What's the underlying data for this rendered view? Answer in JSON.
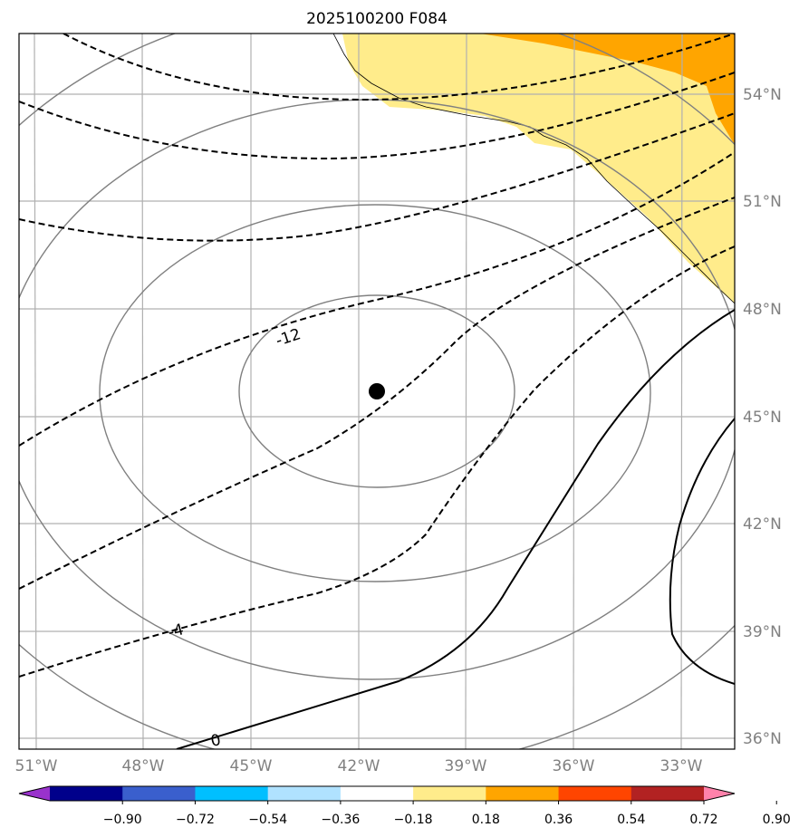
{
  "chart_data": {
    "type": "map",
    "title": "2025100200 F084",
    "lon_ticks": [
      "51°W",
      "48°W",
      "45°W",
      "42°W",
      "39°W",
      "36°W",
      "33°W"
    ],
    "lat_ticks": [
      "54°N",
      "51°N",
      "48°N",
      "45°N",
      "42°N",
      "39°N",
      "36°N"
    ],
    "extent": {
      "lon": [
        -51.3,
        -31.5
      ],
      "lat": [
        35.7,
        55.7
      ]
    },
    "center_marker": {
      "lon": -41.5,
      "lat": 45.7
    },
    "contour_labels": [
      {
        "text": "-12",
        "kind": "dashed"
      },
      {
        "text": "-4",
        "kind": "dashed"
      },
      {
        "text": "0",
        "kind": "solid"
      }
    ],
    "colorbar": {
      "ticks": [
        "−0.90",
        "−0.72",
        "−0.54",
        "−0.36",
        "−0.18",
        "0.18",
        "0.36",
        "0.54",
        "0.72",
        "0.90"
      ],
      "colors": [
        "#9932cc",
        "#00008b",
        "#3a5fcd",
        "#00bfff",
        "#b0e2ff",
        "#ffffff",
        "#ffec8b",
        "#ffa500",
        "#ff4500",
        "#b22222",
        "#ff82ab"
      ],
      "extend": "both"
    },
    "fill_colors": {
      "low": "#ffec8b",
      "mid": "#ffa500"
    }
  }
}
